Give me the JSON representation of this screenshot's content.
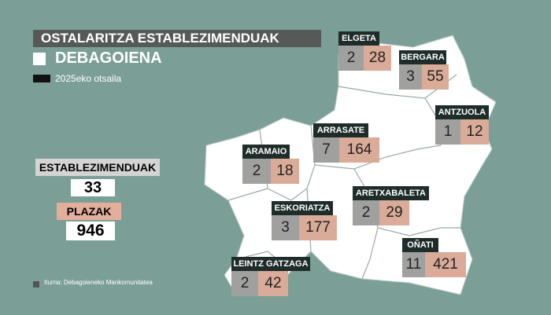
{
  "header": {
    "title": "OSTALARITZA ESTABLEZIMENDUAK",
    "region": "DEBAGOIENA",
    "date": "2025eko otsaila"
  },
  "totals": {
    "establishments_label": "ESTABLEZIMENDUAK",
    "establishments": 33,
    "places_label": "PLAZAK",
    "places": 946
  },
  "source": "Iturria: Debagoieneko Mankomunitatea",
  "towns": [
    {
      "name": "ELGETA",
      "establishments": 2,
      "places": 28
    },
    {
      "name": "BERGARA",
      "establishments": 3,
      "places": 55
    },
    {
      "name": "ANTZUOLA",
      "establishments": 1,
      "places": 12
    },
    {
      "name": "ARRASATE",
      "establishments": 7,
      "places": 164
    },
    {
      "name": "ARAMAIO",
      "establishments": 2,
      "places": 18
    },
    {
      "name": "ARETXABALETA",
      "establishments": 2,
      "places": 29
    },
    {
      "name": "ESKORIATZA",
      "establishments": 3,
      "places": 177
    },
    {
      "name": "OÑATI",
      "establishments": 11,
      "places": 421
    },
    {
      "name": "LEINTZ GATZAGA",
      "establishments": 2,
      "places": 42
    }
  ]
}
